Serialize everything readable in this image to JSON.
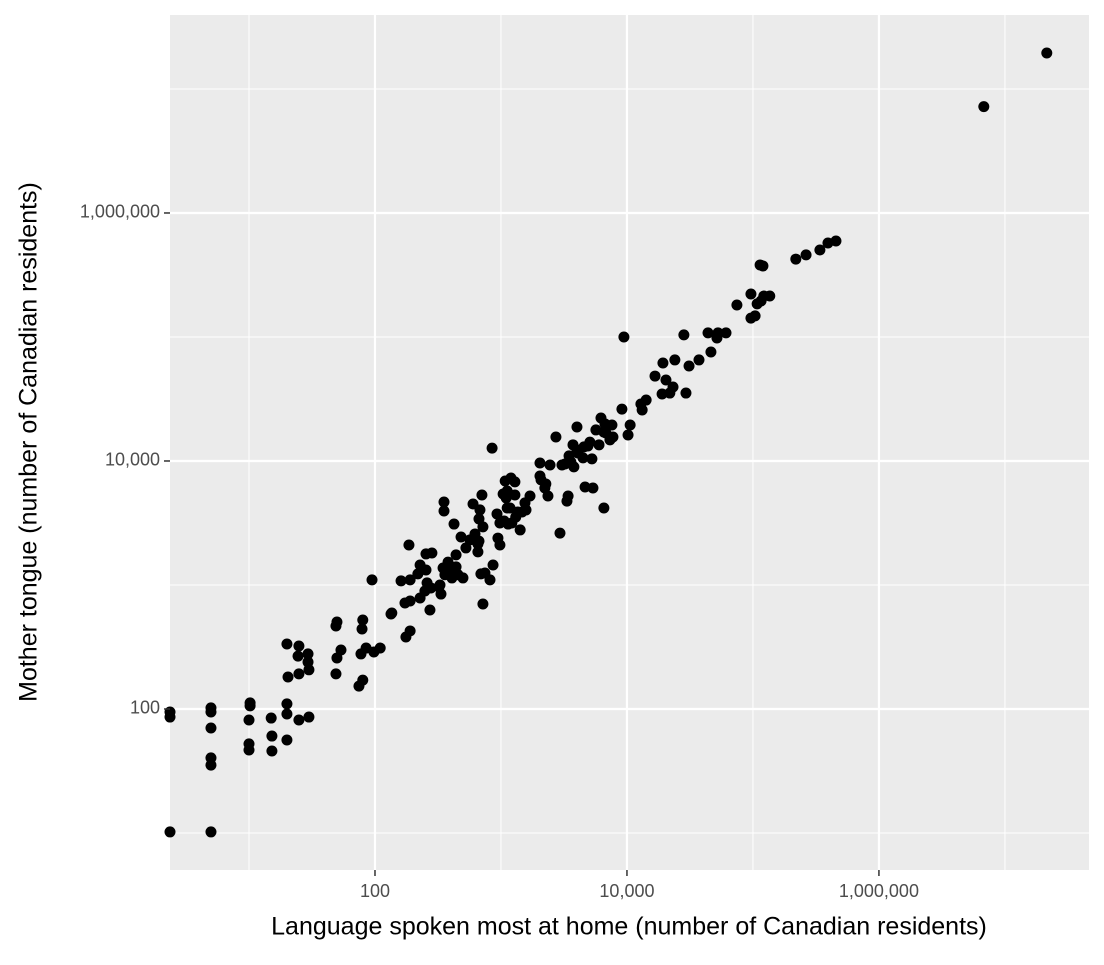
{
  "chart_data": {
    "type": "scatter",
    "x_label": "Language spoken most at home (number of Canadian residents)",
    "y_label": "Mother tongue (number of Canadian residents)",
    "x_scale": "log",
    "y_scale": "log",
    "grid": true,
    "color": "#000000",
    "panel_color": "#ebebeb",
    "xlim": [
      2.36,
      46500000
    ],
    "ylim": [
      5.03,
      39500000
    ],
    "xticks": [
      100,
      {
        "value": 10000,
        "label": "10,000"
      },
      {
        "value": 1000000,
        "label": "1,000,000"
      }
    ],
    "yticks": [
      100,
      {
        "value": 10000,
        "label": "10,000"
      },
      {
        "value": 1000000,
        "label": "1,000,000"
      }
    ],
    "x_minor_grid": [
      10,
      1000,
      100000,
      10000000
    ],
    "y_minor_grid": [
      10,
      1000,
      100000,
      10000000
    ],
    "x": [
      21500000,
      6800000,
      456000,
      394000,
      340000,
      264000,
      219000,
      136000,
      122000,
      116000,
      108000,
      104000,
      96400,
      120000,
      114000,
      96400,
      74600,
      61100,
      52800,
      51800,
      46400,
      44000,
      37300,
      31100,
      29400,
      28300,
      24000,
      23200,
      21900,
      19000,
      20400,
      19300,
      16700,
      14200,
      13200,
      12900,
      10600,
      10200,
      9460,
      9120,
      7600,
      7330,
      6220,
      6690,
      6560,
      5670,
      5080,
      4560,
      4010,
      4010,
      3730,
      3470,
      3050,
      2450,
      2040,
      2080,
      2230,
      2360,
      1700,
      1550,
      1420,
      1290,
      1120,
      1100,
      1040,
      930,
      850,
      719,
      622,
      669,
      600,
      424,
      482,
      440,
      719,
      746,
      706,
      681,
      669,
      656,
      656,
      353,
      353,
      347,
      322,
      283,
      254,
      219,
      190,
      186,
      161,
      134,
      94.7,
      110,
      98,
      85,
      80,
      78.9,
      77.4,
      80,
      74.6,
      53.7,
      49.9,
      49,
      49,
      49.9,
      29.4,
      29.4,
      29.9,
      24.9,
      24.9,
      24.5,
      20.4,
      20,
      20,
      20,
      20,
      29.9,
      24.9,
      15,
      15.2,
      15.2,
      10.2,
      10.2,
      10,
      10,
      10,
      4.99,
      4.99,
      4.99,
      4.99,
      4.99,
      4.99,
      2.36,
      2.36,
      2.36,
      228,
      259,
      278,
      254,
      328,
      334,
      380,
      393,
      408,
      456,
      173,
      190,
      228,
      249,
      273,
      359,
      440,
      499,
      190,
      176,
      136,
      981,
      1060,
      1180,
      1220,
      1310,
      1360,
      1470,
      1140,
      1580,
      1200,
      1080,
      1290,
      1120,
      2040,
      2270,
      2730,
      3220,
      3790,
      3590,
      4080,
      4480,
      5270,
      4900,
      6000,
      6810,
      7740,
      5370,
      4650,
      6560,
      3340,
      3410,
      2940,
      946,
      693,
      568,
      527,
      865,
      818,
      981
    ],
    "values": [
      19500000,
      7200000,
      594000,
      573000,
      503000,
      459000,
      425000,
      214000,
      214000,
      195000,
      185000,
      148000,
      142000,
      374000,
      381000,
      222000,
      181000,
      108000,
      108000,
      98200,
      75700,
      108000,
      65300,
      58300,
      35300,
      104000,
      65300,
      39500,
      35300,
      34700,
      45000,
      61700,
      48400,
      31000,
      25800,
      28800,
      19500,
      16200,
      100000,
      26200,
      19500,
      14800,
      22200,
      19900,
      17100,
      17800,
      14200,
      13000,
      12300,
      18800,
      13500,
      11000,
      9280,
      9280,
      9640,
      7040,
      6060,
      5220,
      5220,
      4590,
      2780,
      5320,
      4180,
      5030,
      5420,
      3740,
      12700,
      2940,
      2580,
      3410,
      4500,
      3100,
      2440,
      1750,
      703,
      1250,
      5320,
      4030,
      2260,
      2140,
      1850,
      4670,
      3950,
      1370,
      964,
      1810,
      1780,
      1230,
      1100,
      2100,
      1080,
      583,
      1100,
      310,
      288,
      310,
      522,
      442,
      278,
      171,
      153,
      299,
      258,
      192,
      467,
      503,
      278,
      239,
      207,
      192,
      322,
      267,
      181,
      334,
      110,
      91.2,
      56.2,
      86.1,
      81.5,
      84.5,
      60.5,
      45.8,
      112,
      106,
      81.5,
      52.3,
      46.7,
      102,
      94.6,
      70.3,
      40.3,
      35.3,
      10.2,
      94.6,
      86.1,
      10.2,
      1450,
      1040,
      946,
      1320,
      1000,
      845,
      1530,
      1320,
      1140,
      1210,
      716,
      743,
      786,
      895,
      628,
      1210,
      1400,
      1140,
      426,
      381,
      594,
      3160,
      3280,
      4180,
      3160,
      3530,
      3880,
      3880,
      3100,
      4030,
      7290,
      6900,
      6780,
      5730,
      7570,
      6530,
      15600,
      9460,
      8960,
      9820,
      11600,
      10600,
      10400,
      13200,
      13500,
      16800,
      15600,
      6060,
      6170,
      4180,
      4750,
      5220,
      2620,
      2390,
      1230,
      2310,
      1990,
      1450,
      1100,
      2100
    ]
  }
}
